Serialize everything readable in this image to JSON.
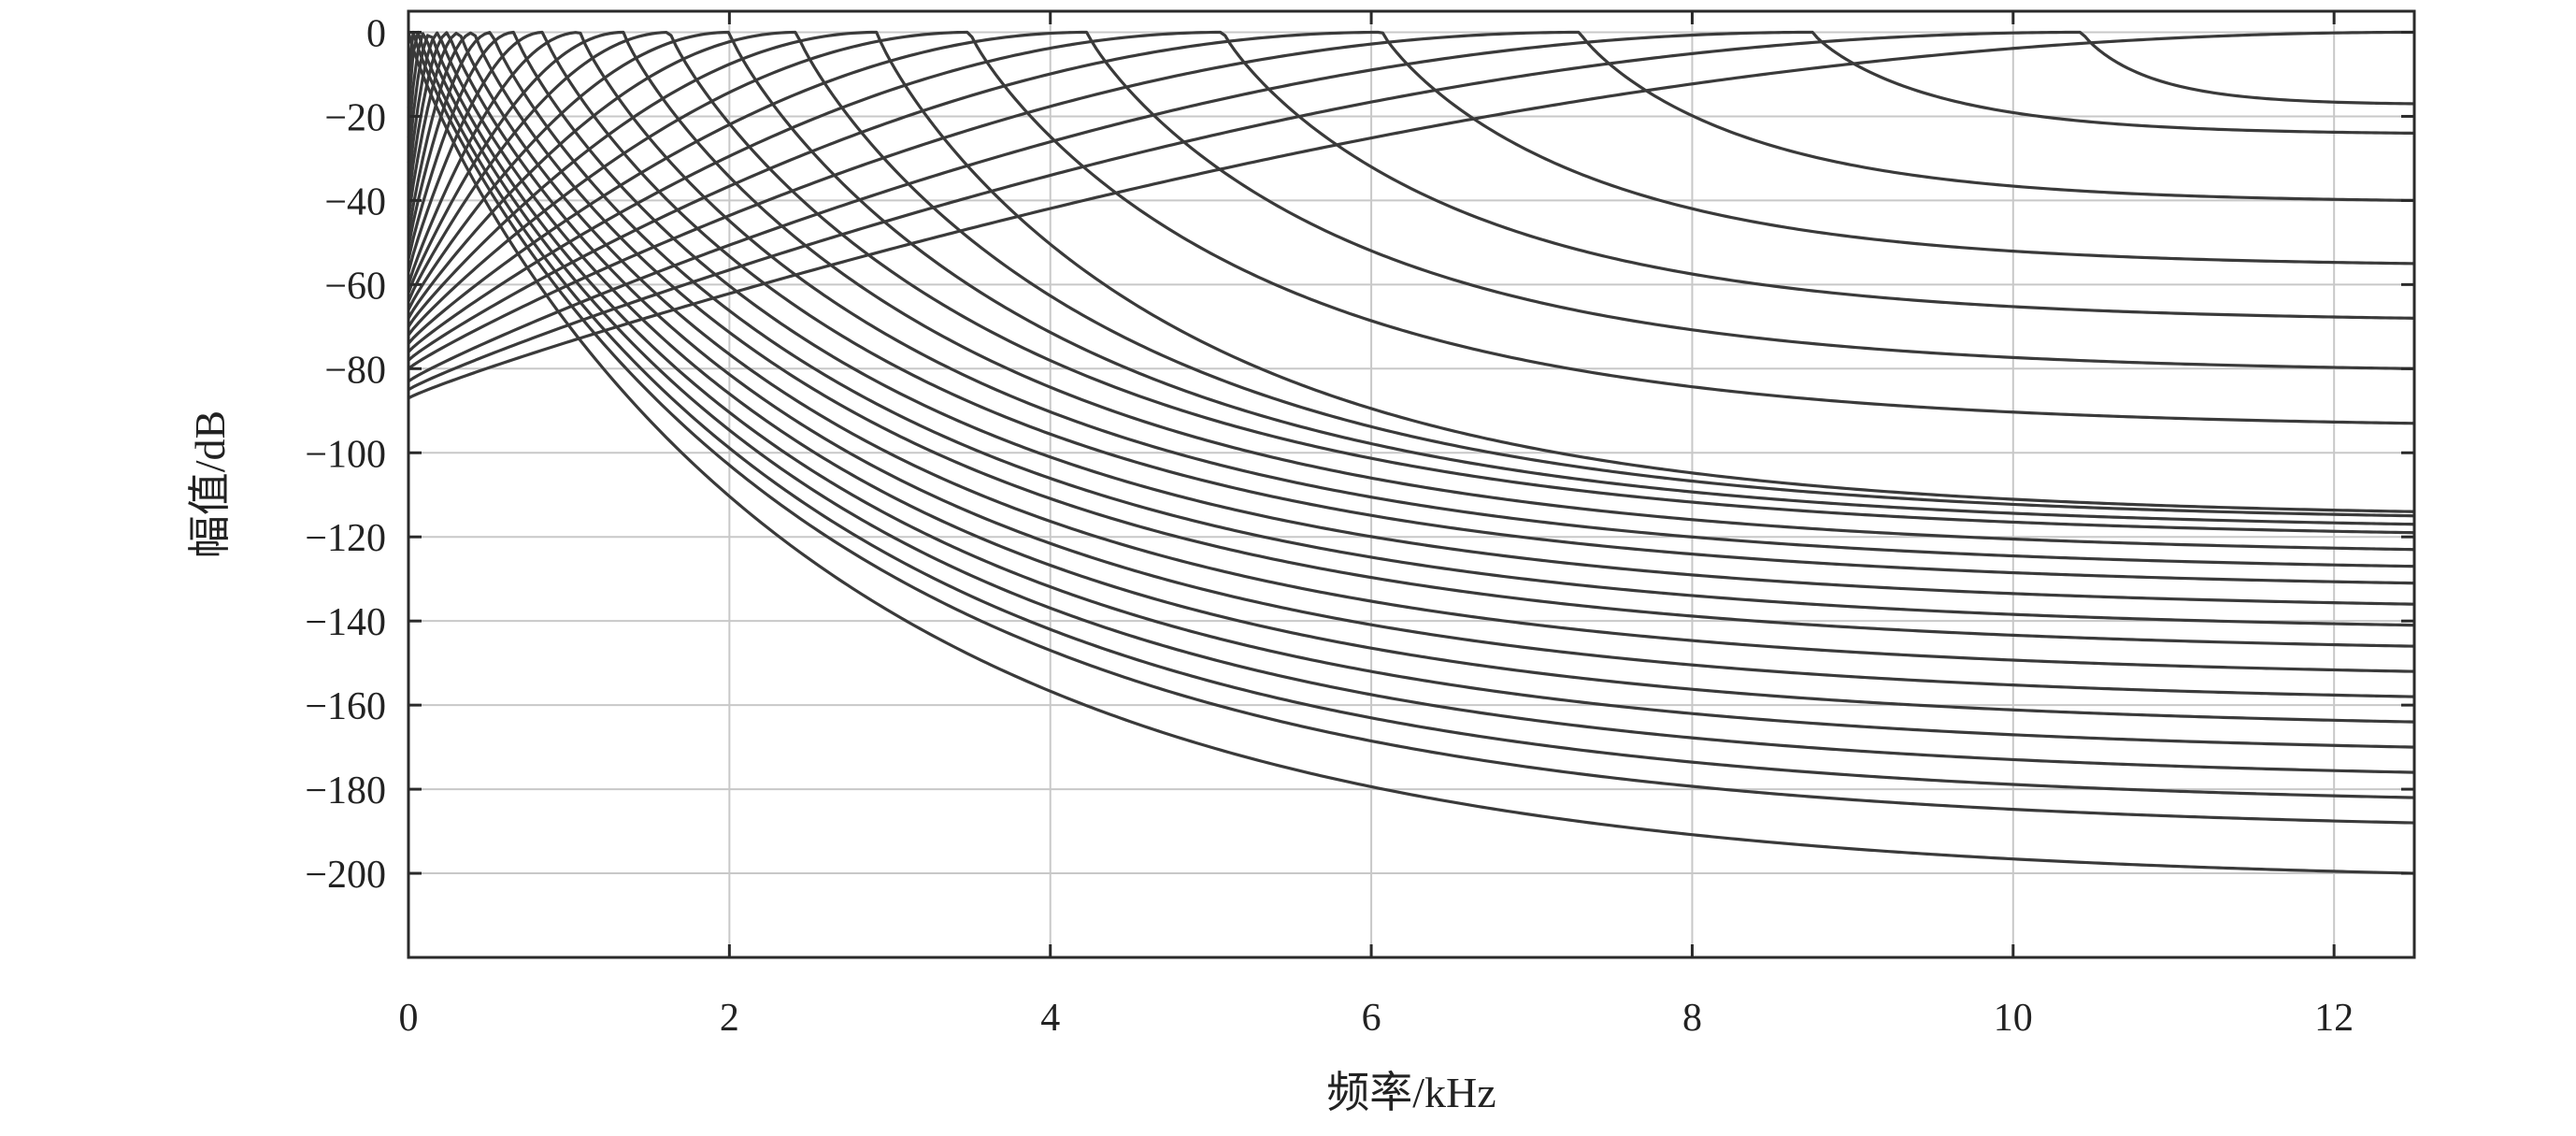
{
  "chart_data": {
    "type": "line",
    "title": "",
    "xlabel": "频率/kHz",
    "ylabel": "幅值/dB",
    "xlim": [
      0,
      12.5
    ],
    "ylim": [
      -220,
      5
    ],
    "x_ticks": [
      0,
      2,
      4,
      6,
      8,
      10,
      12
    ],
    "x_tick_labels": [
      "0",
      "2",
      "4",
      "6",
      "8",
      "10",
      "12"
    ],
    "y_ticks": [
      0,
      -20,
      -40,
      -60,
      -80,
      -100,
      -120,
      -140,
      -160,
      -180,
      -200
    ],
    "y_tick_labels": [
      "0",
      "−20",
      "−40",
      "−60",
      "−80",
      "−100",
      "−120",
      "−140",
      "−160",
      "−180",
      "−200"
    ],
    "grid": true,
    "legend": "none",
    "line_color": "#3a3a3a",
    "grid_color": "#c8c8c8",
    "series": [
      {
        "peak_khz": 0.0,
        "dc_db": 0,
        "end_db": -200
      },
      {
        "peak_khz": 0.03,
        "dc_db": -10,
        "end_db": -188
      },
      {
        "peak_khz": 0.06,
        "dc_db": -18,
        "end_db": -182
      },
      {
        "peak_khz": 0.1,
        "dc_db": -25,
        "end_db": -176
      },
      {
        "peak_khz": 0.14,
        "dc_db": -31,
        "end_db": -170
      },
      {
        "peak_khz": 0.19,
        "dc_db": -36,
        "end_db": -164
      },
      {
        "peak_khz": 0.25,
        "dc_db": -40,
        "end_db": -158
      },
      {
        "peak_khz": 0.32,
        "dc_db": -44,
        "end_db": -152
      },
      {
        "peak_khz": 0.41,
        "dc_db": -48,
        "end_db": -146
      },
      {
        "peak_khz": 0.52,
        "dc_db": -51,
        "end_db": -141
      },
      {
        "peak_khz": 0.66,
        "dc_db": -54,
        "end_db": -136
      },
      {
        "peak_khz": 0.84,
        "dc_db": -57,
        "end_db": -131
      },
      {
        "peak_khz": 1.07,
        "dc_db": -60,
        "end_db": -127
      },
      {
        "peak_khz": 1.34,
        "dc_db": -62,
        "end_db": -123
      },
      {
        "peak_khz": 1.63,
        "dc_db": -64,
        "end_db": -119
      },
      {
        "peak_khz": 2.0,
        "dc_db": -66,
        "end_db": -117
      },
      {
        "peak_khz": 2.42,
        "dc_db": -68,
        "end_db": -115
      },
      {
        "peak_khz": 2.92,
        "dc_db": -70,
        "end_db": -114
      },
      {
        "peak_khz": 3.5,
        "dc_db": -72,
        "end_db": -93
      },
      {
        "peak_khz": 4.23,
        "dc_db": -74,
        "end_db": -80
      },
      {
        "peak_khz": 5.08,
        "dc_db": -76,
        "end_db": -68
      },
      {
        "peak_khz": 6.07,
        "dc_db": -78,
        "end_db": -55
      },
      {
        "peak_khz": 7.3,
        "dc_db": -80,
        "end_db": -40
      },
      {
        "peak_khz": 8.75,
        "dc_db": -83,
        "end_db": -24
      },
      {
        "peak_khz": 10.43,
        "dc_db": -85,
        "end_db": -17
      },
      {
        "peak_khz": 12.5,
        "dc_db": -87,
        "end_db": 0
      }
    ]
  }
}
